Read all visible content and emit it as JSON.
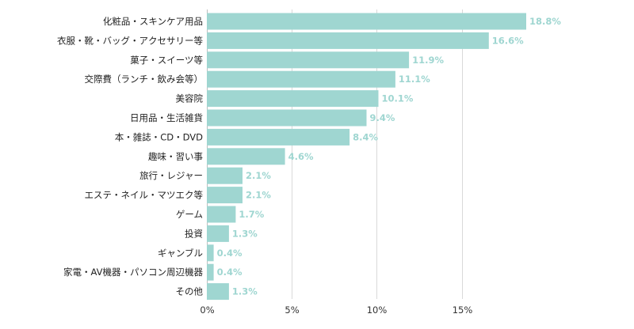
{
  "chart_data": {
    "type": "bar",
    "orientation": "horizontal",
    "categories": [
      "化粧品・スキンケア用品",
      "衣服・靴・バッグ・アクセサリー等",
      "菓子・スイーツ等",
      "交際費（ランチ・飲み会等）",
      "美容院",
      "日用品・生活雑貨",
      "本・雑誌・CD・DVD",
      "趣味・習い事",
      "旅行・レジャー",
      "エステ・ネイル・マツエク等",
      "ゲーム",
      "投資",
      "ギャンブル",
      "家電・AV機器・パソコン周辺機器",
      "その他"
    ],
    "values": [
      18.8,
      16.6,
      11.9,
      11.1,
      10.1,
      9.4,
      8.4,
      4.6,
      2.1,
      2.1,
      1.7,
      1.3,
      0.4,
      0.4,
      1.3
    ],
    "value_labels": [
      "18.8%",
      "16.6%",
      "11.9%",
      "11.1%",
      "10.1%",
      "9.4%",
      "8.4%",
      "4.6%",
      "2.1%",
      "2.1%",
      "1.7%",
      "1.3%",
      "0.4%",
      "0.4%",
      "1.3%"
    ],
    "x_ticks": [
      0,
      5,
      10,
      15
    ],
    "x_tick_labels": [
      "0%",
      "5%",
      "10%",
      "15%"
    ],
    "xlim": [
      0,
      18.8
    ],
    "grid": "vertical",
    "legend": "none",
    "colors": {
      "bar": "#9fd6d1",
      "value_label": "#9fd6d1",
      "grid": "#d9d9d9"
    }
  }
}
